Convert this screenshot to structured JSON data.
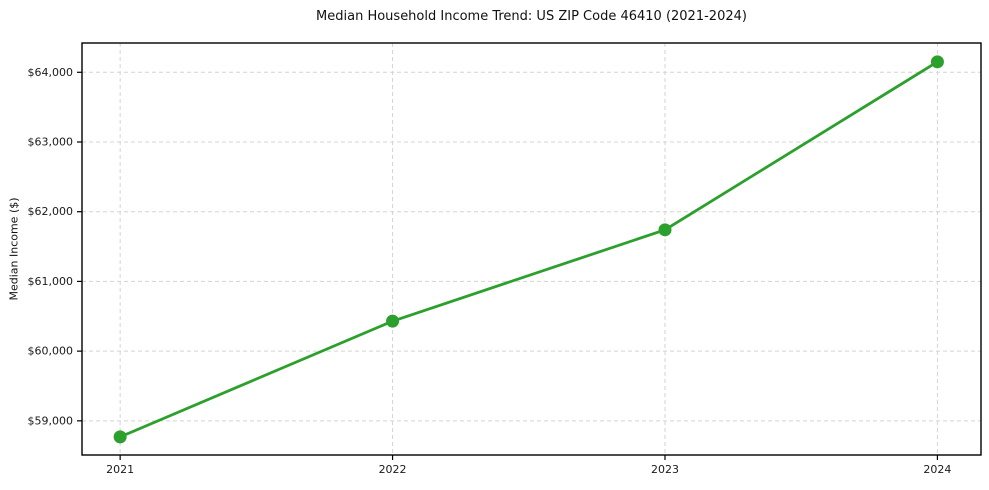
{
  "chart_data": {
    "type": "line",
    "title": "Median Household Income Trend: US ZIP Code 46410 (2021-2024)",
    "xlabel": "",
    "ylabel": "Median Income ($)",
    "x": [
      2021,
      2022,
      2023,
      2024
    ],
    "values": [
      58770,
      60430,
      61740,
      64150
    ],
    "xtick_labels": [
      "2021",
      "2022",
      "2023",
      "2024"
    ],
    "yticks": [
      59000,
      60000,
      61000,
      62000,
      63000,
      64000
    ],
    "ytick_labels": [
      "$59,000",
      "$60,000",
      "$61,000",
      "$62,000",
      "$63,000",
      "$64,000"
    ],
    "xlim": [
      2020.86,
      2024.16
    ],
    "ylim": [
      58510,
      64420
    ],
    "grid": true,
    "grid_style": "dashed",
    "legend": "none",
    "line_color": "#2ca02c",
    "marker": "circle",
    "grid_color": "#d4d4d4",
    "axis_color": "#000000",
    "tick_text_color": "#1a1a1a"
  }
}
